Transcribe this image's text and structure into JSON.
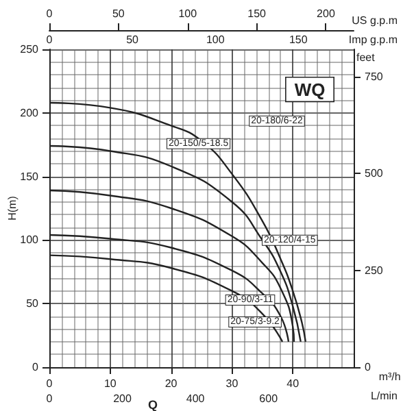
{
  "chart_data": {
    "type": "line",
    "xlabel": "m³/h",
    "ylabel": "H(m)",
    "y2label": "feet",
    "x2label": "US g.p.m",
    "annotations": [
      "WQ",
      "Q",
      "L/min",
      "Imp g.p.m",
      "0",
      "200",
      "400",
      "600",
      "0",
      "50",
      "100",
      "150"
    ],
    "xlim": [
      0,
      50
    ],
    "xticks": [
      0,
      10,
      20,
      30,
      40
    ],
    "ylim": [
      0,
      250
    ],
    "yticks": [
      0,
      50,
      100,
      150,
      200,
      250
    ],
    "x2lim": [
      0,
      220.1
    ],
    "x2ticks": [
      0,
      50,
      100,
      150,
      200
    ],
    "y2lim": [
      0,
      820.2
    ],
    "y2ticks": [
      0,
      250,
      500,
      750
    ],
    "grid": true,
    "legend": false,
    "marker": "none",
    "line_style": "solid",
    "series": [
      {
        "name": "20-180/6-22",
        "color": "#222222",
        "x": [
          0,
          10,
          20,
          25,
          30,
          35,
          38,
          40,
          41.5,
          42.1
        ],
        "values": [
          208,
          204,
          190,
          178,
          152,
          115,
          85,
          60,
          35,
          20
        ]
      },
      {
        "name": "20-150/5-18.5",
        "color": "#222222",
        "x": [
          0,
          10,
          20,
          30,
          35,
          38,
          40,
          41.3
        ],
        "values": [
          174,
          170,
          158,
          130,
          100,
          75,
          48,
          20
        ]
      },
      {
        "name": "20-120/4-15",
        "color": "#222222",
        "x": [
          0,
          10,
          20,
          30,
          35,
          38,
          40,
          40.2
        ],
        "values": [
          139,
          135,
          125,
          103,
          82,
          62,
          32,
          20
        ]
      },
      {
        "name": "20-90/3-11",
        "color": "#222222",
        "x": [
          0,
          10,
          20,
          30,
          35,
          38,
          39.3
        ],
        "values": [
          104,
          101,
          94,
          76,
          58,
          40,
          20
        ]
      },
      {
        "name": "20-75/3-9.2",
        "color": "#222222",
        "x": [
          0,
          10,
          20,
          30,
          35,
          38.3
        ],
        "values": [
          88,
          85,
          78,
          60,
          42,
          20
        ]
      }
    ]
  }
}
